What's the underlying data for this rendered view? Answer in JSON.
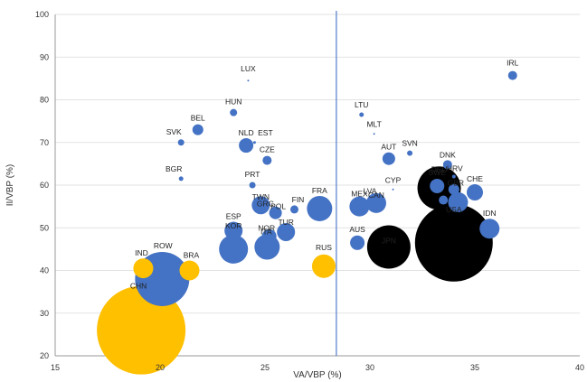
{
  "chart_data": {
    "type": "scatter",
    "title": "",
    "xlabel": "VA/VBP (%)",
    "ylabel": "II/VBP (%)",
    "xlim": [
      15,
      40
    ],
    "ylim": [
      20,
      100
    ],
    "xticks": [
      15,
      20,
      25,
      30,
      35,
      40
    ],
    "yticks": [
      20,
      30,
      40,
      50,
      60,
      70,
      80,
      90,
      100
    ],
    "grid": "horizontal",
    "legend": "none",
    "reference_line_x": 28.4,
    "colors": {
      "blue": "#4472c4",
      "yellow": "#ffc000",
      "black": "#000000",
      "line": "#4472c4"
    },
    "points": [
      {
        "label": "LUX",
        "x": 24.2,
        "y": 84.5,
        "r": 1,
        "color": "blue"
      },
      {
        "label": "HUN",
        "x": 23.5,
        "y": 77,
        "r": 4,
        "color": "blue"
      },
      {
        "label": "BEL",
        "x": 21.8,
        "y": 73,
        "r": 6,
        "color": "blue"
      },
      {
        "label": "SVK",
        "x": 21,
        "y": 70,
        "r": 3.5,
        "color": "blue"
      },
      {
        "label": "NLD",
        "x": 24.1,
        "y": 69.3,
        "r": 8,
        "color": "blue"
      },
      {
        "label": "EST",
        "x": 24.5,
        "y": 70,
        "r": 1.5,
        "color": "blue"
      },
      {
        "label": "CZE",
        "x": 25.1,
        "y": 65.8,
        "r": 5,
        "color": "blue"
      },
      {
        "label": "BGR",
        "x": 21,
        "y": 61.5,
        "r": 2.5,
        "color": "blue"
      },
      {
        "label": "PRT",
        "x": 24.4,
        "y": 60,
        "r": 3.5,
        "color": "blue"
      },
      {
        "label": "TWN",
        "x": 24.8,
        "y": 55.3,
        "r": 10,
        "color": "blue"
      },
      {
        "label": "GRC",
        "x": 25.1,
        "y": 55.5,
        "r": 3.5,
        "color": "blue"
      },
      {
        "label": "POL",
        "x": 25.5,
        "y": 53.5,
        "r": 7,
        "color": "blue"
      },
      {
        "label": "FIN",
        "x": 26.4,
        "y": 54.3,
        "r": 4.5,
        "color": "blue"
      },
      {
        "label": "TUR",
        "x": 26,
        "y": 49,
        "r": 10,
        "color": "blue"
      },
      {
        "label": "NOR",
        "x": 25.2,
        "y": 48,
        "r": 8,
        "color": "blue"
      },
      {
        "label": "ESP",
        "x": 23.5,
        "y": 49.3,
        "r": 10,
        "color": "blue"
      },
      {
        "label": "KOR",
        "x": 23.5,
        "y": 45,
        "r": 16,
        "color": "blue"
      },
      {
        "label": "ITA",
        "x": 25.1,
        "y": 45.5,
        "r": 14,
        "color": "blue"
      },
      {
        "label": "FRA",
        "x": 27.6,
        "y": 54.5,
        "r": 14,
        "color": "blue"
      },
      {
        "label": "RUS",
        "x": 27.8,
        "y": 41,
        "r": 13,
        "color": "yellow"
      },
      {
        "label": "IND",
        "x": 19.2,
        "y": 40.5,
        "r": 11,
        "color": "yellow"
      },
      {
        "label": "BRA",
        "x": 21.4,
        "y": 40,
        "r": 11,
        "color": "yellow"
      },
      {
        "label": "ROW",
        "x": 20.1,
        "y": 38,
        "r": 30,
        "color": "blue"
      },
      {
        "label": "CHN",
        "x": 19.1,
        "y": 26,
        "r": 49,
        "color": "yellow"
      },
      {
        "label": "LTU",
        "x": 29.6,
        "y": 76.5,
        "r": 2.5,
        "color": "blue"
      },
      {
        "label": "MLT",
        "x": 30.2,
        "y": 72,
        "r": 1,
        "color": "blue"
      },
      {
        "label": "AUT",
        "x": 30.9,
        "y": 66.2,
        "r": 7,
        "color": "blue"
      },
      {
        "label": "SVN",
        "x": 31.9,
        "y": 67.5,
        "r": 3,
        "color": "blue"
      },
      {
        "label": "CYP",
        "x": 31.1,
        "y": 59,
        "r": 1,
        "color": "blue"
      },
      {
        "label": "LVA",
        "x": 30,
        "y": 56.3,
        "r": 3,
        "color": "blue"
      },
      {
        "label": "MEX",
        "x": 29.5,
        "y": 55,
        "r": 11,
        "color": "blue"
      },
      {
        "label": "CAN",
        "x": 30.3,
        "y": 55.8,
        "r": 11,
        "color": "blue"
      },
      {
        "label": "JPN",
        "x": 30.9,
        "y": 45.5,
        "r": 24,
        "color": "black"
      },
      {
        "label": "AUS",
        "x": 29.4,
        "y": 46.5,
        "r": 8,
        "color": "blue"
      },
      {
        "label": "DNK",
        "x": 33.7,
        "y": 64.8,
        "r": 5,
        "color": "blue"
      },
      {
        "label": "DEU",
        "x": 33.3,
        "y": 59.3,
        "r": 24,
        "color": "black"
      },
      {
        "label": "SWE",
        "x": 33.2,
        "y": 59.8,
        "r": 8,
        "color": "blue"
      },
      {
        "label": "HRV",
        "x": 34,
        "y": 62,
        "r": 2,
        "color": "blue"
      },
      {
        "label": "GBR",
        "x": 34,
        "y": 59,
        "r": 6,
        "color": "blue"
      },
      {
        "label": "CHE",
        "x": 35,
        "y": 58.3,
        "r": 9,
        "color": "blue"
      },
      {
        "label": "USA",
        "x": 34,
        "y": 46.5,
        "r": 43,
        "color": "black"
      },
      {
        "label": "IRL",
        "x": 36.8,
        "y": 85.7,
        "r": 5,
        "color": "blue"
      },
      {
        "label": "IDN",
        "x": 35.7,
        "y": 49.8,
        "r": 11,
        "color": "blue"
      },
      {
        "label": "",
        "x": 33.5,
        "y": 56.5,
        "r": 5,
        "color": "blue"
      },
      {
        "label": "",
        "x": 34.2,
        "y": 56,
        "r": 11,
        "color": "blue"
      }
    ]
  }
}
